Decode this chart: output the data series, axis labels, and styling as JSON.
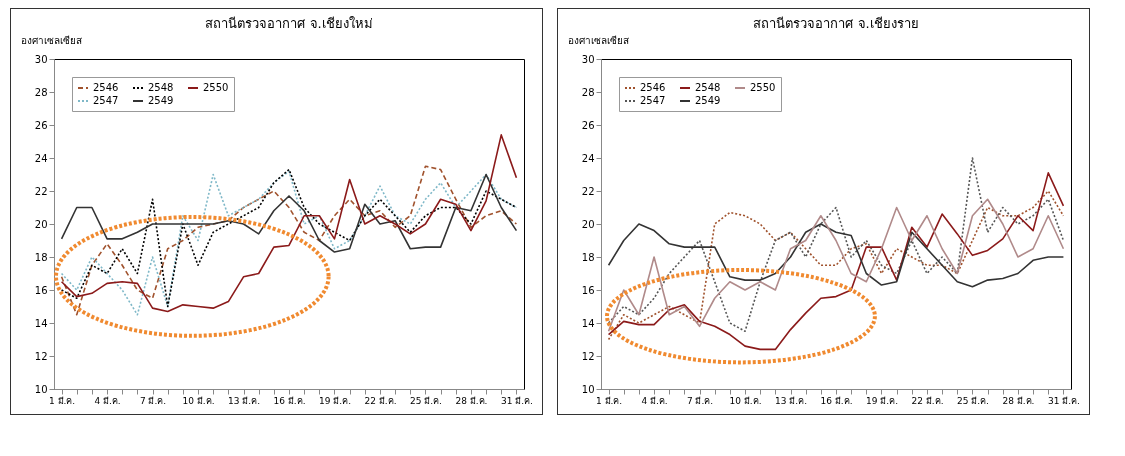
{
  "chart_data": [
    {
      "type": "line",
      "title": "สถานีตรวจอากาศ จ.เชียงใหม่",
      "ylabel": "องศาเซลเซียส",
      "categories": [
        "1 มี.ค.",
        null,
        null,
        "4 มี.ค.",
        null,
        null,
        "7 มี.ค.",
        null,
        null,
        "10 มี.ค.",
        null,
        null,
        "13 มี.ค.",
        null,
        null,
        "16 มี.ค.",
        null,
        null,
        "19 มี.ค.",
        null,
        null,
        "22 มี.ค.",
        null,
        null,
        "25 มี.ค.",
        null,
        null,
        "28 มี.ค.",
        null,
        null,
        "31 มี.ค."
      ],
      "ylim": [
        10,
        30
      ],
      "yticks": [
        10,
        12,
        14,
        16,
        18,
        20,
        22,
        24,
        26,
        28,
        30
      ],
      "grid": false,
      "legend": "top left",
      "marker": "none",
      "series": [
        {
          "name": "2546",
          "color": "#a0522d",
          "line_style": "dashed",
          "values": [
            16.8,
            14.5,
            17.5,
            18.8,
            17.5,
            16.0,
            15.5,
            18.5,
            19.0,
            19.8,
            20.0,
            20.2,
            21.0,
            21.5,
            22.0,
            21.0,
            19.5,
            19.0,
            20.5,
            21.5,
            20.5,
            20.8,
            19.8,
            20.5,
            23.5,
            23.3,
            21.5,
            19.8,
            20.5,
            20.8,
            20.0
          ]
        },
        {
          "name": "2547",
          "color": "#7fb8c8",
          "line_style": "dotted",
          "values": [
            17.0,
            16.0,
            18.0,
            17.0,
            16.0,
            14.5,
            18.0,
            15.0,
            20.5,
            19.0,
            23.0,
            20.5,
            21.0,
            21.5,
            22.5,
            23.2,
            20.0,
            20.5,
            18.5,
            19.0,
            20.5,
            22.3,
            20.5,
            20.0,
            21.5,
            22.5,
            21.0,
            22.0,
            23.0,
            21.5,
            21.0
          ]
        },
        {
          "name": "2548",
          "color": "#000000",
          "line_style": "dotted",
          "values": [
            16.0,
            15.5,
            17.5,
            17.0,
            18.5,
            17.0,
            21.5,
            15.0,
            20.0,
            17.5,
            19.5,
            20.0,
            20.5,
            21.0,
            22.5,
            23.3,
            21.0,
            20.0,
            19.5,
            19.0,
            20.5,
            21.5,
            20.5,
            19.5,
            20.5,
            21.0,
            21.0,
            20.0,
            22.0,
            21.5,
            21.0
          ]
        },
        {
          "name": "2549",
          "color": "#333333",
          "line_style": "solid",
          "values": [
            19.1,
            21.0,
            21.0,
            19.1,
            19.1,
            19.5,
            20.0,
            20.0,
            20.0,
            20.0,
            20.0,
            20.2,
            20.0,
            19.4,
            20.8,
            21.7,
            20.8,
            19.0,
            18.3,
            18.5,
            21.2,
            20.0,
            20.2,
            18.5,
            18.6,
            18.6,
            21.0,
            20.8,
            23.0,
            21.0,
            19.6
          ]
        },
        {
          "name": "2550",
          "color": "#8b1a1a",
          "line_style": "solid",
          "values": [
            16.5,
            15.6,
            15.8,
            16.4,
            16.5,
            16.4,
            14.9,
            14.7,
            15.1,
            15.0,
            14.9,
            15.3,
            16.8,
            17.0,
            18.6,
            18.7,
            20.5,
            20.5,
            19.1,
            22.7,
            20.0,
            20.5,
            20.0,
            19.4,
            20.0,
            21.5,
            21.2,
            19.6,
            21.4,
            25.4,
            22.8
          ]
        }
      ]
    },
    {
      "type": "line",
      "title": "สถานีตรวจอากาศ จ.เชียงราย",
      "ylabel": "องศาเซลเซียส",
      "categories": [
        "1 มี.ค.",
        null,
        null,
        "4 มี.ค.",
        null,
        null,
        "7 มี.ค.",
        null,
        null,
        "10 มี.ค.",
        null,
        null,
        "13 มี.ค.",
        null,
        null,
        "16 มี.ค.",
        null,
        null,
        "19 มี.ค.",
        null,
        null,
        "22 มี.ค.",
        null,
        null,
        "25 มี.ค.",
        null,
        null,
        "28 มี.ค.",
        null,
        null,
        "31 มี.ค."
      ],
      "ylim": [
        10,
        30
      ],
      "yticks": [
        10,
        12,
        14,
        16,
        18,
        20,
        22,
        24,
        26,
        28,
        30
      ],
      "grid": false,
      "legend": "top left",
      "marker": "none",
      "series": [
        {
          "name": "2546",
          "color": "#a0522d",
          "line_style": "dotted",
          "values": [
            13.0,
            14.5,
            14.0,
            14.5,
            15.0,
            14.5,
            14.0,
            20.0,
            20.7,
            20.5,
            20.0,
            19.0,
            19.5,
            18.5,
            17.5,
            17.5,
            18.5,
            18.8,
            17.0,
            18.5,
            18.0,
            17.5,
            17.5,
            17.0,
            19.0,
            21.0,
            20.5,
            20.5,
            21.0,
            22.0,
            20.5
          ]
        },
        {
          "name": "2547",
          "color": "#555555",
          "line_style": "dotted",
          "values": [
            14.0,
            15.0,
            14.5,
            15.5,
            17.0,
            18.0,
            19.0,
            16.5,
            14.0,
            13.5,
            16.5,
            19.0,
            19.5,
            18.0,
            20.0,
            21.0,
            18.0,
            19.0,
            17.5,
            17.0,
            19.0,
            17.0,
            18.0,
            17.0,
            24.0,
            19.5,
            21.0,
            20.0,
            20.5,
            21.5,
            19.0
          ]
        },
        {
          "name": "2548",
          "color": "#8b1a1a",
          "line_style": "solid",
          "values": [
            13.3,
            14.1,
            13.9,
            13.9,
            14.8,
            15.1,
            14.1,
            13.8,
            13.3,
            12.6,
            12.4,
            12.4,
            13.6,
            14.6,
            15.5,
            15.6,
            16.0,
            18.6,
            18.6,
            16.6,
            19.8,
            18.6,
            20.6,
            19.4,
            18.1,
            18.4,
            19.1,
            20.5,
            19.6,
            23.1,
            21.1
          ]
        },
        {
          "name": "2549",
          "color": "#333333",
          "line_style": "solid",
          "values": [
            17.5,
            19.0,
            20.0,
            19.6,
            18.8,
            18.6,
            18.6,
            18.6,
            16.8,
            16.6,
            16.6,
            17.0,
            18.0,
            19.5,
            20.0,
            19.5,
            19.3,
            17.0,
            16.3,
            16.5,
            19.5,
            18.5,
            17.5,
            16.5,
            16.2,
            16.6,
            16.7,
            17.0,
            17.8,
            18.0,
            18.0
          ]
        },
        {
          "name": "2550",
          "color": "#b08a8a",
          "line_style": "solid",
          "values": [
            13.5,
            16.0,
            14.5,
            18.0,
            14.5,
            15.0,
            13.8,
            15.5,
            16.5,
            16.0,
            16.5,
            16.0,
            18.5,
            19.0,
            20.5,
            19.0,
            17.0,
            16.5,
            18.5,
            21.0,
            19.0,
            20.5,
            18.5,
            17.0,
            20.5,
            21.5,
            20.0,
            18.0,
            18.5,
            20.5,
            18.5
          ]
        }
      ]
    }
  ]
}
